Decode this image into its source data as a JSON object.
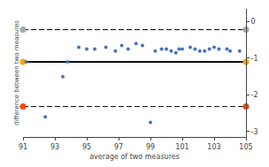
{
  "chart_data": {
    "type": "scatter",
    "xlabel": "average of two measures",
    "ylabel": "difference between two measures",
    "x": [
      91.2,
      92.4,
      93.5,
      93.8,
      94.5,
      95.0,
      95.5,
      96.2,
      96.8,
      97.2,
      97.6,
      98.1,
      98.5,
      99.0,
      99.3,
      99.7,
      100.0,
      100.3,
      100.6,
      100.8,
      101.0,
      101.5,
      101.8,
      102.1,
      102.4,
      102.7,
      103.0,
      103.3,
      103.8,
      104.0,
      104.6
    ],
    "values": [
      -1.1,
      -2.6,
      -1.5,
      -1.1,
      -0.7,
      -0.75,
      -0.75,
      -0.7,
      -0.8,
      -0.65,
      -0.75,
      -0.6,
      -0.65,
      -2.75,
      -0.8,
      -0.75,
      -0.75,
      -0.8,
      -0.85,
      -0.75,
      -0.75,
      -0.7,
      -0.75,
      -0.8,
      -0.8,
      -0.75,
      -0.7,
      -0.75,
      -0.75,
      -0.8,
      -0.8
    ],
    "color": "#4472C4",
    "reference_lines": [
      {
        "value": -0.22,
        "line_style": "dashed",
        "color": "#000000",
        "end_color": "#A8A8A8"
      },
      {
        "value": -1.1,
        "line_style": "solid",
        "color": "#000000",
        "end_color": "#FFA500"
      },
      {
        "value": -2.32,
        "line_style": "dashed",
        "color": "#000000",
        "end_color": "#FF4500"
      }
    ],
    "xlim": [
      91,
      105
    ],
    "xticks": [
      91,
      93,
      95,
      97,
      99,
      101,
      103,
      105
    ],
    "ylim": [
      -3.15,
      0.35
    ],
    "yticks": [
      0,
      -1,
      -2,
      -3
    ],
    "grid": false
  }
}
